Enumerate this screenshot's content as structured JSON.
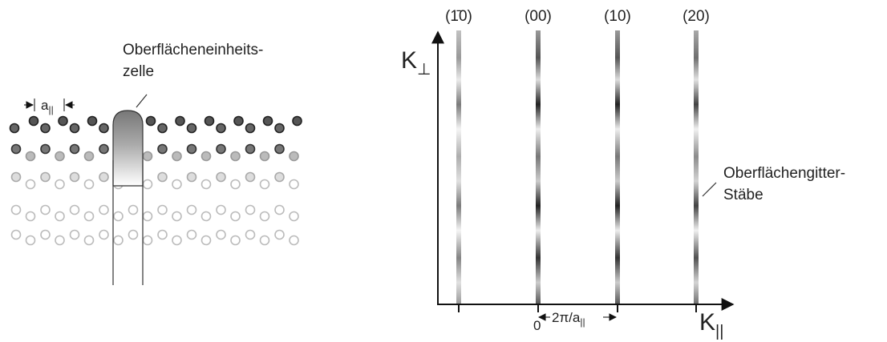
{
  "left": {
    "cell_label": [
      "Oberflächeneinheits-",
      "zelle"
    ],
    "lattice_constant": {
      "symbol": "a",
      "subscript": "||"
    }
  },
  "right": {
    "rod_indices": [
      "(1̄0)",
      "(00)",
      "(10)",
      "(20)"
    ],
    "y_axis": {
      "symbol": "K",
      "subscript": "⊥"
    },
    "x_axis": {
      "symbol": "K",
      "subscript": "||"
    },
    "origin": "0",
    "spacing": {
      "symbol": "2π/a",
      "subscript": "||"
    },
    "rod_label": [
      "Oberflächengitter-",
      "Stäbe"
    ]
  }
}
